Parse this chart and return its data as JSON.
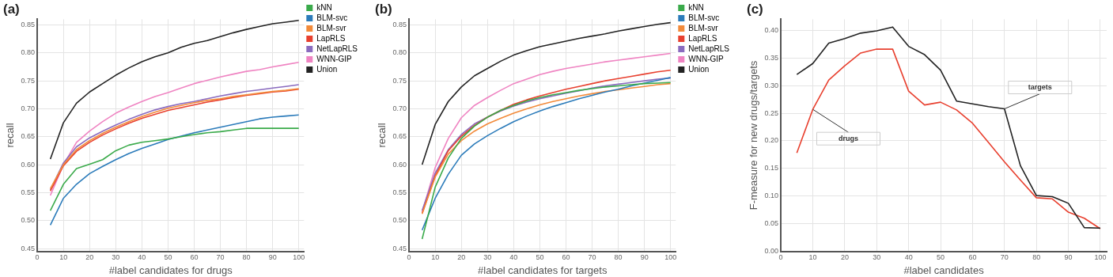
{
  "chart_data": [
    {
      "type": "line",
      "title": "(a)",
      "xlabel": "#label candidates for drugs",
      "ylabel": "recall",
      "x": [
        5,
        10,
        15,
        20,
        25,
        30,
        35,
        40,
        45,
        50,
        55,
        60,
        65,
        70,
        75,
        80,
        85,
        90,
        95,
        100
      ],
      "xlim": [
        0,
        102
      ],
      "xticks": [
        0,
        10,
        20,
        30,
        40,
        50,
        60,
        70,
        80,
        90,
        100
      ],
      "ylim": [
        0.445,
        0.86
      ],
      "yticks": [
        0.45,
        {
          "value": 0.5,
          "label": "0.50"
        },
        0.55,
        {
          "value": 0.6,
          "label": "0.60"
        },
        0.65,
        {
          "value": 0.7,
          "label": "0.70"
        },
        0.75,
        {
          "value": 0.8,
          "label": "0.80"
        },
        0.85
      ],
      "grid": true,
      "legend": "right",
      "marker": "none",
      "series": [
        {
          "name": "kNN",
          "color": "#3aaa4a",
          "values": [
            0.518,
            0.565,
            0.593,
            0.601,
            0.609,
            0.625,
            0.635,
            0.64,
            0.643,
            0.646,
            0.65,
            0.654,
            0.657,
            0.659,
            0.662,
            0.665,
            0.665,
            0.665,
            0.665,
            0.665
          ]
        },
        {
          "name": "BLM-svc",
          "color": "#2b7bba",
          "values": [
            0.492,
            0.54,
            0.565,
            0.584,
            0.597,
            0.609,
            0.62,
            0.629,
            0.637,
            0.645,
            0.651,
            0.657,
            0.662,
            0.667,
            0.672,
            0.677,
            0.682,
            0.685,
            0.687,
            0.689
          ]
        },
        {
          "name": "BLM-svr",
          "color": "#f28a3a",
          "values": [
            0.557,
            0.6,
            0.627,
            0.643,
            0.656,
            0.667,
            0.677,
            0.686,
            0.694,
            0.701,
            0.706,
            0.711,
            0.715,
            0.718,
            0.722,
            0.725,
            0.728,
            0.731,
            0.733,
            0.736
          ]
        },
        {
          "name": "LapRLS",
          "color": "#e8402f",
          "values": [
            0.553,
            0.598,
            0.624,
            0.64,
            0.653,
            0.664,
            0.674,
            0.683,
            0.69,
            0.697,
            0.702,
            0.707,
            0.712,
            0.716,
            0.72,
            0.724,
            0.727,
            0.73,
            0.732,
            0.735
          ]
        },
        {
          "name": "NetLapRLS",
          "color": "#8a6bbf",
          "values": [
            0.555,
            0.603,
            0.632,
            0.648,
            0.66,
            0.671,
            0.681,
            0.69,
            0.698,
            0.704,
            0.709,
            0.713,
            0.718,
            0.723,
            0.727,
            0.731,
            0.734,
            0.737,
            0.74,
            0.743
          ]
        },
        {
          "name": "WNN-GIP",
          "color": "#ef84c2",
          "values": [
            0.545,
            0.6,
            0.64,
            0.66,
            0.677,
            0.692,
            0.703,
            0.713,
            0.722,
            0.729,
            0.737,
            0.745,
            0.751,
            0.757,
            0.762,
            0.767,
            0.77,
            0.775,
            0.779,
            0.783
          ]
        },
        {
          "name": "Union",
          "color": "#222222",
          "values": [
            0.61,
            0.675,
            0.71,
            0.73,
            0.745,
            0.76,
            0.773,
            0.784,
            0.793,
            0.8,
            0.81,
            0.817,
            0.822,
            0.829,
            0.836,
            0.842,
            0.847,
            0.852,
            0.855,
            0.858
          ]
        }
      ]
    },
    {
      "type": "line",
      "title": "(b)",
      "xlabel": "#label candidates for targets",
      "ylabel": "recall",
      "x": [
        5,
        10,
        15,
        20,
        25,
        30,
        35,
        40,
        45,
        50,
        55,
        60,
        65,
        70,
        75,
        80,
        85,
        90,
        95,
        100
      ],
      "xlim": [
        0,
        102
      ],
      "xticks": [
        0,
        10,
        20,
        30,
        40,
        50,
        60,
        70,
        80,
        90,
        100
      ],
      "ylim": [
        0.445,
        0.86
      ],
      "yticks": [
        0.45,
        {
          "value": 0.5,
          "label": "0.50"
        },
        0.55,
        {
          "value": 0.6,
          "label": "0.60"
        },
        0.65,
        {
          "value": 0.7,
          "label": "0.70"
        },
        0.75,
        {
          "value": 0.8,
          "label": "0.80"
        },
        0.85
      ],
      "grid": true,
      "legend": "right",
      "marker": "none",
      "series": [
        {
          "name": "kNN",
          "color": "#3aaa4a",
          "values": [
            0.467,
            0.56,
            0.612,
            0.647,
            0.669,
            0.685,
            0.697,
            0.706,
            0.714,
            0.72,
            0.725,
            0.729,
            0.733,
            0.736,
            0.739,
            0.741,
            0.743,
            0.745,
            0.746,
            0.747
          ]
        },
        {
          "name": "BLM-svc",
          "color": "#2b7bba",
          "values": [
            0.483,
            0.54,
            0.583,
            0.617,
            0.637,
            0.652,
            0.665,
            0.677,
            0.687,
            0.696,
            0.704,
            0.711,
            0.718,
            0.724,
            0.73,
            0.735,
            0.741,
            0.746,
            0.751,
            0.756
          ]
        },
        {
          "name": "BLM-svr",
          "color": "#f28a3a",
          "values": [
            0.512,
            0.578,
            0.619,
            0.643,
            0.66,
            0.673,
            0.683,
            0.692,
            0.7,
            0.707,
            0.713,
            0.718,
            0.723,
            0.727,
            0.731,
            0.734,
            0.737,
            0.74,
            0.743,
            0.745
          ]
        },
        {
          "name": "LapRLS",
          "color": "#e8402f",
          "values": [
            0.513,
            0.58,
            0.625,
            0.651,
            0.67,
            0.685,
            0.697,
            0.708,
            0.716,
            0.723,
            0.729,
            0.735,
            0.74,
            0.745,
            0.75,
            0.754,
            0.758,
            0.762,
            0.766,
            0.769
          ]
        },
        {
          "name": "NetLapRLS",
          "color": "#8a6bbf",
          "values": [
            0.518,
            0.585,
            0.627,
            0.654,
            0.673,
            0.685,
            0.696,
            0.705,
            0.712,
            0.718,
            0.723,
            0.728,
            0.732,
            0.737,
            0.741,
            0.744,
            0.747,
            0.75,
            0.753,
            0.755
          ]
        },
        {
          "name": "WNN-GIP",
          "color": "#ef84c2",
          "values": [
            0.515,
            0.595,
            0.647,
            0.684,
            0.706,
            0.72,
            0.733,
            0.745,
            0.753,
            0.761,
            0.767,
            0.772,
            0.776,
            0.78,
            0.784,
            0.787,
            0.79,
            0.793,
            0.796,
            0.799
          ]
        },
        {
          "name": "Union",
          "color": "#222222",
          "values": [
            0.6,
            0.672,
            0.713,
            0.739,
            0.759,
            0.772,
            0.785,
            0.796,
            0.804,
            0.811,
            0.816,
            0.821,
            0.826,
            0.83,
            0.834,
            0.839,
            0.843,
            0.847,
            0.851,
            0.854
          ]
        }
      ]
    },
    {
      "type": "line",
      "title": "(c)",
      "xlabel": "#label candidates",
      "ylabel": "F-measure for new drugs/targets",
      "x": [
        5,
        10,
        15,
        20,
        25,
        30,
        35,
        40,
        45,
        50,
        55,
        60,
        65,
        70,
        75,
        80,
        85,
        90,
        95,
        100
      ],
      "xlim": [
        0,
        102
      ],
      "xticks": [
        0,
        10,
        20,
        30,
        40,
        50,
        60,
        70,
        80,
        90,
        100
      ],
      "ylim": [
        0,
        0.42
      ],
      "yticks": [
        {
          "value": 0,
          "label": "0.00"
        },
        0.05,
        {
          "value": 0.1,
          "label": "0.10"
        },
        0.15,
        {
          "value": 0.2,
          "label": "0.20"
        },
        0.25,
        {
          "value": 0.3,
          "label": "0.30"
        },
        0.35,
        {
          "value": 0.4,
          "label": "0.40"
        }
      ],
      "grid": true,
      "marker": "none",
      "annotations": [
        {
          "text": "targets",
          "x": 70,
          "y": 0.258
        },
        {
          "text": "drugs",
          "x": 10,
          "y": 0.257
        }
      ],
      "series": [
        {
          "color": "#222222",
          "values": [
            0.32,
            0.34,
            0.377,
            0.385,
            0.395,
            0.399,
            0.406,
            0.371,
            0.356,
            0.328,
            0.272,
            0.267,
            0.262,
            0.258,
            0.155,
            0.101,
            0.099,
            0.087,
            0.043,
            0.042
          ]
        },
        {
          "color": "#e8402f",
          "values": [
            0.178,
            0.257,
            0.31,
            0.336,
            0.359,
            0.366,
            0.366,
            0.29,
            0.265,
            0.27,
            0.256,
            0.232,
            0.197,
            0.162,
            0.129,
            0.097,
            0.095,
            0.071,
            0.06,
            0.041
          ]
        }
      ]
    }
  ]
}
